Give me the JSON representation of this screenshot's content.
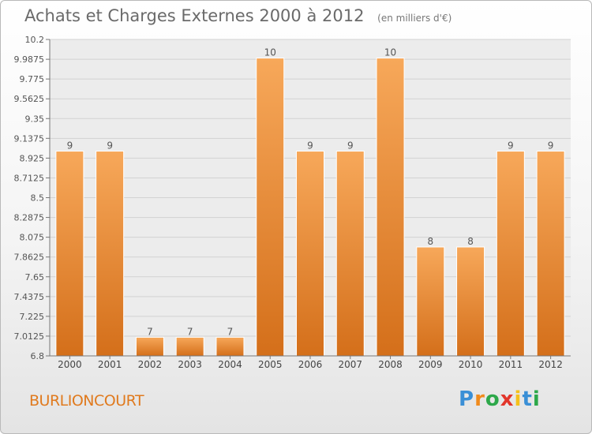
{
  "header": {
    "title": "Achats et Charges Externes 2000 à 2012",
    "unit": "(en milliers d'€)"
  },
  "location": "BURLIONCOURT",
  "brand": {
    "letters": [
      "P",
      "r",
      "o",
      "x",
      "i",
      "t",
      "i"
    ],
    "text": "Proxiti"
  },
  "colors": {
    "bar_light": "#f7a85a",
    "bar_dark": "#d46f1a",
    "town": "#e07a1e"
  },
  "chart_data": {
    "type": "bar",
    "categories": [
      "2000",
      "2001",
      "2002",
      "2003",
      "2004",
      "2005",
      "2006",
      "2007",
      "2008",
      "2009",
      "2010",
      "2011",
      "2012"
    ],
    "values": [
      9,
      9,
      7,
      7,
      7,
      10,
      9,
      9,
      10,
      8,
      8,
      9,
      9
    ],
    "labels": [
      "9",
      "9",
      "7",
      "7",
      "7",
      "10",
      "9",
      "9",
      "10",
      "8",
      "8",
      "9",
      "9"
    ],
    "plot_values": [
      9,
      9,
      7,
      7,
      7,
      10,
      9,
      9,
      10,
      7.97,
      7.97,
      9,
      9
    ],
    "title": "Achats et Charges Externes 2000 à 2012",
    "xlabel": "",
    "ylabel": "",
    "ylim": [
      6.8,
      10.2
    ],
    "yticks": [
      "10.2",
      "9.9875",
      "9.775",
      "9.5625",
      "9.35",
      "9.1375",
      "8.925",
      "8.7125",
      "8.5",
      "8.2875",
      "8.075",
      "7.8625",
      "7.65",
      "7.4375",
      "7.225",
      "7.0125",
      "6.8"
    ],
    "grid": true,
    "legend": "none"
  }
}
